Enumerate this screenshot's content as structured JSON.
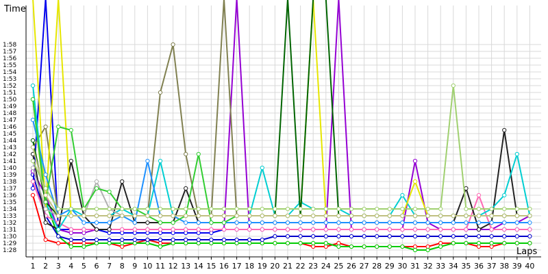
{
  "chart_data": {
    "type": "line",
    "title": "",
    "xlabel": "Laps",
    "ylabel": "Time",
    "x": [
      1,
      2,
      3,
      4,
      5,
      6,
      7,
      8,
      9,
      10,
      11,
      12,
      13,
      14,
      15,
      16,
      17,
      18,
      19,
      20,
      21,
      22,
      23,
      24,
      25,
      26,
      27,
      28,
      29,
      30,
      31,
      32,
      33,
      34,
      35,
      36,
      37,
      38,
      39,
      40
    ],
    "ytick_labels": [
      "1:28",
      "1:29",
      "1:30",
      "1:31",
      "1:32",
      "1:33",
      "1:34",
      "1:35",
      "1:36",
      "1:37",
      "1:38",
      "1:39",
      "1:40",
      "1:41",
      "1:42",
      "1:43",
      "1:44",
      "1:45",
      "1:46",
      "1:47",
      "1:48",
      "1:49",
      "1:50",
      "1:51",
      "1:52",
      "1:53",
      "1:54",
      "1:55",
      "1:56",
      "1:57",
      "1:58"
    ],
    "ylim_seconds": [
      87,
      119
    ],
    "grid": true,
    "legend": "none",
    "series": [
      {
        "color": "#ff0000",
        "values": [
          96,
          89.5,
          89,
          89,
          89,
          89,
          89,
          88.5,
          89,
          89.5,
          89,
          89,
          89,
          89,
          89,
          89,
          89,
          89,
          89,
          89,
          89,
          89,
          88.5,
          88.5,
          89,
          88.5,
          88.5,
          88.5,
          88.5,
          88.5,
          88.5,
          88.5,
          89,
          89,
          89,
          88.5,
          88.5,
          89,
          89,
          89
        ]
      },
      {
        "color": "#00cc00",
        "values": [
          110,
          95,
          90,
          88.5,
          88.5,
          89,
          89,
          89,
          89,
          89,
          88.5,
          89,
          89,
          89,
          89,
          89,
          89,
          89,
          89,
          89,
          89,
          89,
          89,
          89,
          88.5,
          88.5,
          88.5,
          88.5,
          88.5,
          88.5,
          88,
          88,
          88.5,
          89,
          89,
          89,
          89,
          89,
          89,
          89
        ]
      },
      {
        "color": "#0000cc",
        "values": [
          99,
          93,
          90,
          89.5,
          89.5,
          89.5,
          89.5,
          89.5,
          89.5,
          89.5,
          89.5,
          89.5,
          89.5,
          89.5,
          89.5,
          89.5,
          89.5,
          89.5,
          89.5,
          90,
          90,
          90,
          90,
          90,
          90,
          90,
          90,
          90,
          90,
          90,
          90,
          90,
          90,
          90,
          90,
          90,
          90,
          90,
          90,
          90
        ]
      },
      {
        "color": "#0000ee",
        "values": [
          97,
          125,
          91,
          91,
          91,
          91,
          90.5,
          90.5,
          90.5,
          90.5,
          90.5,
          90.5,
          90.5,
          90.5,
          90.5,
          91,
          91,
          91,
          91,
          91,
          91,
          91,
          91,
          91,
          91,
          91,
          91,
          91,
          91,
          91,
          91,
          91,
          91,
          91,
          91,
          91,
          91,
          91,
          91,
          91
        ]
      },
      {
        "color": "#9400d3",
        "values": [
          99.5,
          96,
          91,
          90.5,
          90.5,
          91,
          91,
          91,
          91,
          91,
          91,
          91,
          91,
          91,
          91,
          91,
          130,
          91,
          91,
          91,
          91,
          91,
          91,
          91,
          130,
          91,
          91,
          91,
          91,
          91,
          101,
          92,
          91,
          91,
          91,
          91,
          91,
          92,
          92,
          93
        ]
      },
      {
        "color": "#ff69b4",
        "values": [
          98,
          93,
          92,
          91,
          91,
          91,
          91,
          91,
          91,
          91,
          91,
          91,
          91,
          91,
          91,
          91,
          91,
          91,
          91,
          91,
          91,
          91,
          91,
          91,
          91,
          91,
          91,
          91,
          91,
          91,
          91,
          91,
          91,
          91,
          91,
          96,
          91,
          91,
          91,
          91
        ]
      },
      {
        "color": "#222222",
        "values": [
          102,
          92,
          91,
          101,
          93,
          91,
          91,
          98,
          92,
          92,
          92,
          92,
          97,
          92,
          92,
          92,
          92,
          92,
          92,
          92,
          92,
          92,
          92,
          92,
          92,
          92,
          92,
          92,
          92,
          92,
          92,
          92,
          92,
          92,
          97,
          91,
          92,
          105.5,
          93,
          93
        ]
      },
      {
        "color": "#808050",
        "values": [
          103,
          106,
          93,
          93,
          93,
          93,
          93,
          93,
          93,
          93,
          111,
          118,
          102,
          93,
          93,
          128,
          93,
          93,
          93,
          93,
          93,
          93,
          93,
          93,
          93,
          93,
          93,
          93,
          93,
          93,
          93,
          93,
          93,
          93,
          93,
          93,
          93,
          93,
          93,
          93
        ]
      },
      {
        "color": "#00ced1",
        "values": [
          112,
          95,
          91,
          94,
          93,
          93,
          93,
          94,
          93,
          93,
          101,
          93,
          93,
          93,
          93,
          93,
          93,
          93,
          100,
          93,
          93,
          95,
          94,
          94,
          94,
          93,
          93,
          93,
          93,
          96,
          93,
          93,
          93,
          93,
          93,
          93,
          94,
          96,
          102,
          93
        ]
      },
      {
        "color": "#9acd32",
        "values": [
          110,
          94,
          93,
          93,
          93,
          93,
          93,
          93,
          93,
          93,
          93,
          93,
          93,
          93,
          93,
          93,
          93,
          93,
          93,
          93,
          93,
          93,
          93,
          93,
          93,
          93,
          93,
          93,
          93,
          93,
          93,
          93,
          93,
          93,
          93,
          93,
          93,
          93,
          93,
          93
        ]
      },
      {
        "color": "#e6e600",
        "values": [
          130,
          94,
          130,
          93,
          93,
          93,
          93,
          93,
          93,
          93,
          93,
          93,
          93,
          93,
          93,
          93,
          93,
          93,
          93,
          93,
          93,
          93,
          130,
          93,
          93,
          93,
          93,
          93,
          93,
          93,
          98,
          93,
          93,
          93,
          93,
          93,
          93,
          93,
          93,
          93
        ]
      },
      {
        "color": "#1e90ff",
        "values": [
          107,
          99,
          93,
          94,
          92,
          92,
          92,
          93,
          92,
          101,
          93,
          93,
          92,
          92,
          92,
          92,
          92,
          92,
          92,
          92,
          92,
          92,
          92,
          92,
          92,
          92,
          92,
          92,
          92,
          92,
          92,
          92,
          92,
          92,
          92,
          92,
          92,
          92,
          92,
          92
        ]
      },
      {
        "color": "#b0b0b0",
        "values": [
          100,
          94,
          93,
          93,
          93,
          98,
          94,
          93,
          93,
          93,
          93,
          93,
          93,
          93,
          93,
          93,
          93,
          93,
          93,
          93,
          93,
          93,
          93,
          93,
          93,
          93,
          93,
          93,
          93,
          93,
          93,
          93,
          93,
          93,
          93,
          93,
          93,
          93,
          93,
          93
        ]
      },
      {
        "color": "#006400",
        "values": [
          104,
          95,
          93,
          93,
          93,
          93,
          93,
          93,
          93,
          93,
          93,
          93,
          93,
          93,
          93,
          93,
          93,
          93,
          93,
          93,
          130,
          93,
          130,
          130,
          93,
          93,
          93,
          93,
          93,
          93,
          93,
          93,
          93,
          93,
          93,
          93,
          93,
          93,
          93,
          93
        ]
      },
      {
        "color": "#32cd32",
        "values": [
          110,
          95,
          106,
          105.5,
          94,
          97,
          96.5,
          94,
          94,
          93,
          92,
          92,
          93,
          102,
          92,
          92,
          93,
          93,
          93,
          93,
          93,
          93,
          93,
          93,
          93,
          93,
          93,
          93,
          93,
          93,
          93,
          93,
          93,
          93,
          93,
          93,
          93,
          93,
          93,
          93
        ]
      },
      {
        "color": "#c0c080",
        "values": [
          103,
          96,
          93,
          93,
          93,
          93,
          93,
          93,
          93,
          93,
          93,
          93,
          93,
          93,
          93,
          93,
          93,
          93,
          93,
          93,
          93,
          93,
          93,
          93,
          93,
          93,
          93,
          93,
          93,
          93,
          93,
          93,
          93,
          93,
          93,
          93,
          93,
          93,
          93,
          93
        ]
      },
      {
        "color": "#a0d070",
        "values": [
          101,
          97,
          94,
          94,
          94,
          94,
          94,
          94,
          94,
          94,
          94,
          94,
          94,
          94,
          94,
          94,
          94,
          94,
          94,
          94,
          94,
          94,
          94,
          94,
          94,
          94,
          94,
          94,
          94,
          94,
          94,
          94,
          94,
          112,
          94,
          94,
          94,
          94,
          94,
          94
        ]
      }
    ]
  }
}
